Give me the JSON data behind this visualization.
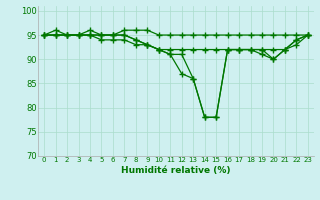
{
  "xlabel": "Humidité relative (%)",
  "xlim": [
    -0.5,
    23.5
  ],
  "ylim": [
    70,
    101
  ],
  "yticks": [
    70,
    75,
    80,
    85,
    90,
    95,
    100
  ],
  "bg_color": "#cff0f0",
  "grid_color": "#aaddcc",
  "line_color": "#007700",
  "series": [
    [
      95,
      96,
      95,
      95,
      96,
      95,
      95,
      96,
      96,
      96,
      95,
      95,
      95,
      95,
      95,
      95,
      95,
      95,
      95,
      95,
      95,
      95,
      95,
      95
    ],
    [
      95,
      95,
      95,
      95,
      95,
      95,
      95,
      95,
      94,
      93,
      92,
      91,
      91,
      86,
      78,
      78,
      92,
      92,
      92,
      92,
      90,
      92,
      94,
      95
    ],
    [
      95,
      95,
      95,
      95,
      95,
      95,
      95,
      95,
      94,
      93,
      92,
      91,
      87,
      86,
      78,
      78,
      92,
      92,
      92,
      91,
      90,
      92,
      94,
      95
    ],
    [
      95,
      95,
      95,
      95,
      95,
      94,
      94,
      94,
      93,
      93,
      92,
      92,
      92,
      92,
      92,
      92,
      92,
      92,
      92,
      92,
      92,
      92,
      93,
      95
    ]
  ]
}
